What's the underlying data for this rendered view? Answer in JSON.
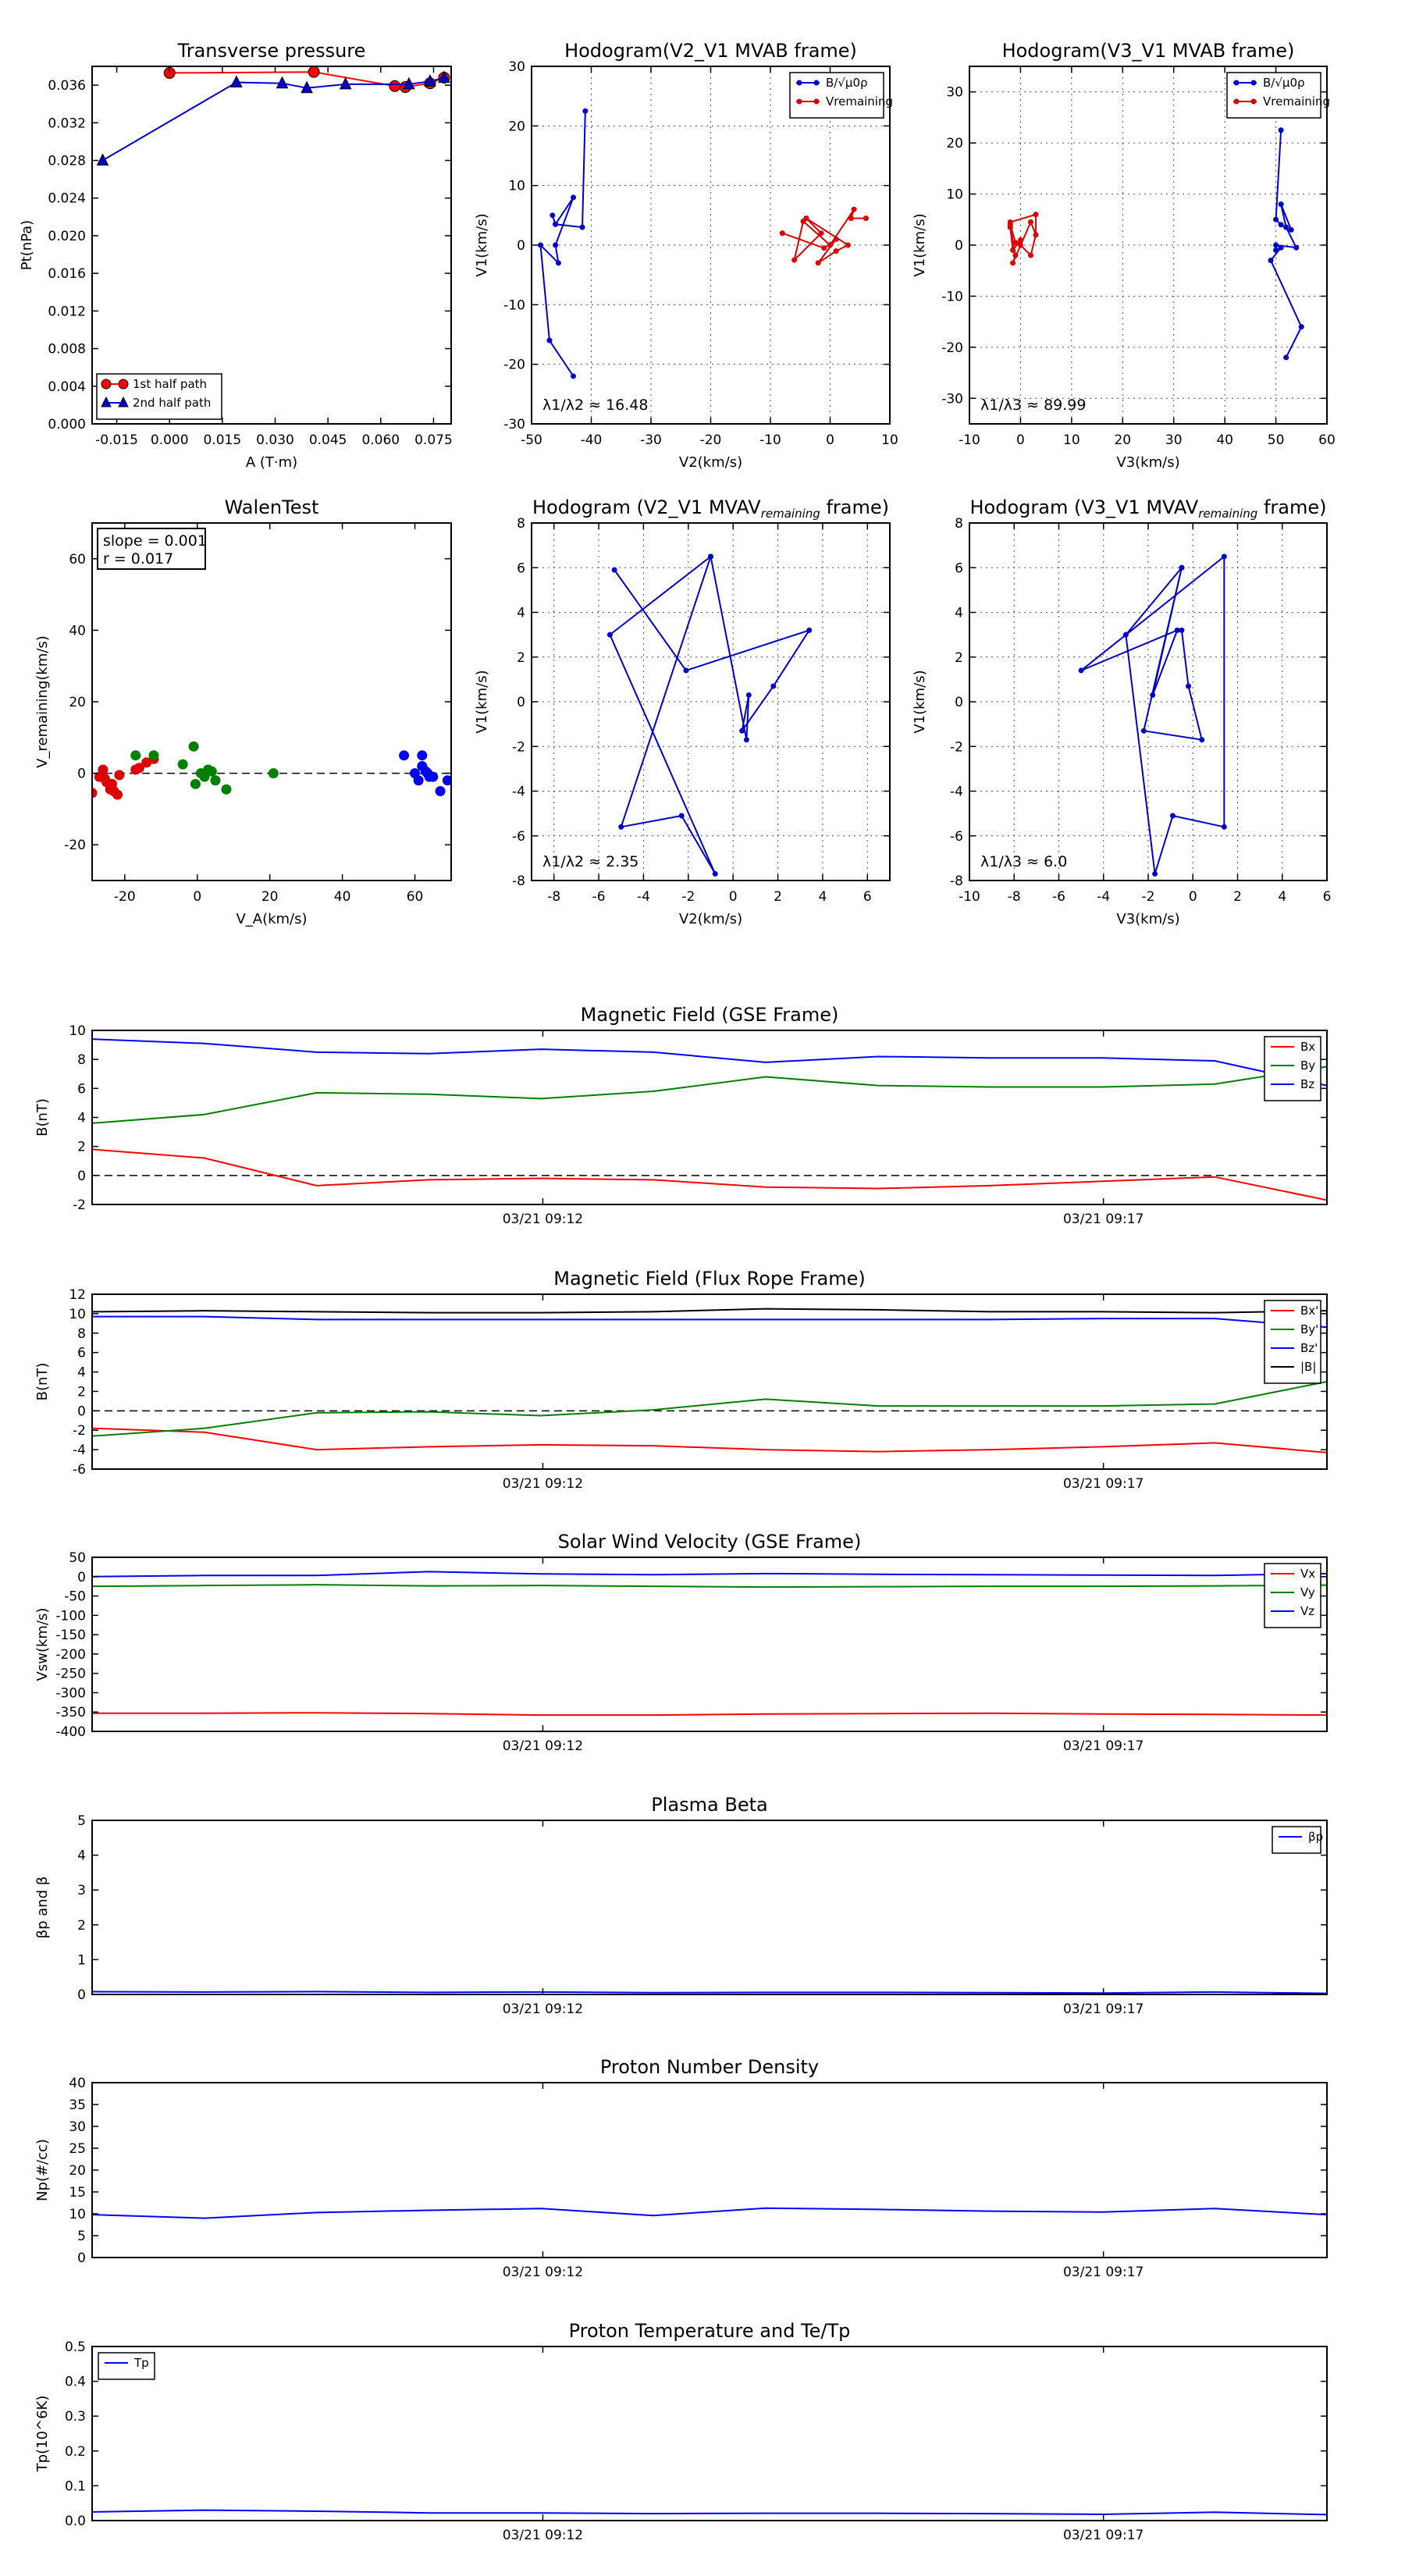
{
  "chart_data": [
    {
      "id": "tp",
      "type": "line",
      "title": "Transverse pressure",
      "xlabel": "A (T·m)",
      "ylabel": "Pt(nPa)",
      "xlim": [
        -0.022,
        0.08
      ],
      "ylim": [
        0.0,
        0.038
      ],
      "xticks": [
        -0.015,
        0.0,
        0.015,
        0.03,
        0.045,
        0.06,
        0.075
      ],
      "xtick_labels": [
        "-0.015",
        "0.000",
        "0.015",
        "0.030",
        "0.045",
        "0.060",
        "0.075"
      ],
      "yticks": [
        0,
        0.004,
        0.008,
        0.012,
        0.016,
        0.02,
        0.024,
        0.028,
        0.032,
        0.036
      ],
      "ytick_labels": [
        "0.000",
        "0.004",
        "0.008",
        "0.012",
        "0.016",
        "0.020",
        "0.024",
        "0.028",
        "0.032",
        "0.036"
      ],
      "grid": false,
      "legend": "lower-left",
      "series": [
        {
          "name": "1st half path",
          "color": "#ff0000",
          "marker": "circle",
          "x": [
            0.078,
            0.074,
            0.067,
            0.064,
            0.041,
            0.0
          ],
          "y": [
            0.0368,
            0.0362,
            0.0358,
            0.0359,
            0.0374,
            0.0373
          ]
        },
        {
          "name": "2nd half path",
          "color": "#0000cc",
          "marker": "triangle",
          "x": [
            -0.019,
            0.019,
            0.032,
            0.039,
            0.05,
            0.068,
            0.074,
            0.078
          ],
          "y": [
            0.028,
            0.0363,
            0.0362,
            0.0357,
            0.0361,
            0.0361,
            0.0364,
            0.0368
          ]
        }
      ]
    },
    {
      "id": "h1",
      "type": "line",
      "title": "Hodogram(V2_V1 MVAB frame)",
      "xlabel": "V2(km/s)",
      "ylabel": "V1(km/s)",
      "xlim": [
        -50,
        10
      ],
      "ylim": [
        -30,
        30
      ],
      "xticks": [
        -50,
        -40,
        -30,
        -20,
        -10,
        0,
        10
      ],
      "yticks": [
        -30,
        -20,
        -10,
        0,
        10,
        20,
        30
      ],
      "grid": true,
      "legend": "top-right",
      "annotation": "λ1/λ2 ≈ 16.48",
      "series": [
        {
          "name": "B/√μ0ρ",
          "color": "#0000cc",
          "x": [
            -41,
            -41.5,
            -46,
            -46.5,
            -46,
            -43,
            -46,
            -45.5,
            -48.5,
            -47,
            -43
          ],
          "y": [
            22.5,
            3,
            3.5,
            5,
            3.5,
            8,
            0,
            -3,
            0,
            -16,
            -22
          ]
        },
        {
          "name": "Vremaining",
          "color": "#dd0000",
          "x": [
            6,
            3.5,
            4,
            0,
            -4.5,
            -6,
            -1.5,
            -4,
            3,
            1,
            -2,
            1,
            -1,
            -8
          ],
          "y": [
            4.5,
            4.5,
            6,
            0,
            4,
            -2.5,
            2,
            4.5,
            0,
            -1,
            -3,
            1,
            -0.5,
            2
          ]
        }
      ]
    },
    {
      "id": "h2",
      "type": "line",
      "title": "Hodogram(V3_V1 MVAB frame)",
      "xlabel": "V3(km/s)",
      "ylabel": "V1(km/s)",
      "xlim": [
        -10,
        60
      ],
      "ylim": [
        -35,
        35
      ],
      "xticks": [
        -10,
        0,
        10,
        20,
        30,
        40,
        50,
        60
      ],
      "yticks": [
        -30,
        -20,
        -10,
        0,
        10,
        20,
        30
      ],
      "grid": true,
      "legend": "top-right",
      "annotation": "λ1/λ3 ≈ 89.99",
      "series": [
        {
          "name": "B/√μ0ρ",
          "color": "#0000cc",
          "x": [
            51,
            50,
            51,
            53,
            51,
            52,
            54,
            50,
            50,
            51,
            49,
            55,
            52
          ],
          "y": [
            22.5,
            5,
            4,
            3,
            8,
            3.5,
            -0.5,
            0,
            -1,
            -0.5,
            -3,
            -16,
            -22
          ]
        },
        {
          "name": "Vremaining",
          "color": "#dd0000",
          "x": [
            3,
            3,
            -2,
            -2,
            -1,
            0,
            2,
            3,
            2,
            -1.5,
            -1,
            -2,
            -1.5,
            0
          ],
          "y": [
            2,
            6,
            4.5,
            4,
            0.5,
            0,
            -2,
            2,
            4.5,
            -3.5,
            -2,
            3.5,
            -1,
            1
          ]
        }
      ]
    },
    {
      "id": "walen",
      "type": "scatter",
      "title": "WalenTest",
      "xlabel": "V_A(km/s)",
      "ylabel": "V_remaining(km/s)",
      "xlim": [
        -29,
        70
      ],
      "ylim": [
        -30,
        70
      ],
      "xticks": [
        -20,
        0,
        20,
        40,
        60
      ],
      "yticks": [
        -20,
        0,
        20,
        40,
        60
      ],
      "grid": false,
      "annotation_lines": [
        "slope = 0.001",
        "r = 0.017"
      ],
      "fit_line": {
        "x": [
          -29,
          70
        ],
        "y": [
          0,
          0
        ]
      },
      "series": [
        {
          "name": "",
          "color": "#dd0000",
          "x": [
            -29,
            -27,
            -26,
            -25.5,
            -25,
            -24,
            -23.5,
            -23,
            -22,
            -21.5,
            -17,
            -16,
            -14,
            -12
          ],
          "y": [
            -5.5,
            -1,
            1,
            -1.5,
            -2.5,
            -4.5,
            -3,
            -5,
            -6,
            -0.5,
            1,
            1.5,
            3,
            4
          ]
        },
        {
          "name": "",
          "color": "#008000",
          "x": [
            -17,
            -12,
            -4,
            -1,
            -0.5,
            1,
            2,
            3,
            4,
            5,
            8,
            21
          ],
          "y": [
            5,
            5,
            2.5,
            7.5,
            -3,
            0,
            -1,
            1,
            0.5,
            -2,
            -4.5,
            0
          ]
        },
        {
          "name": "",
          "color": "#0000ee",
          "x": [
            57,
            60,
            61,
            62,
            62,
            63,
            63.5,
            64,
            65,
            67,
            69
          ],
          "y": [
            5,
            0,
            -2,
            2,
            5,
            0.5,
            0,
            -1,
            -1,
            -5,
            -2
          ]
        }
      ]
    },
    {
      "id": "h3",
      "type": "line",
      "title": "Hodogram (V2_V1 MVAV",
      "title_sub": "remaining",
      "title_end": " frame)",
      "xlabel": "V2(km/s)",
      "ylabel": "V1(km/s)",
      "xlim": [
        -9,
        7
      ],
      "ylim": [
        -8,
        8
      ],
      "xticks": [
        -8,
        -6,
        -4,
        -2,
        0,
        2,
        4,
        6
      ],
      "yticks": [
        -8,
        -6,
        -4,
        -2,
        0,
        2,
        4,
        6,
        8
      ],
      "grid": true,
      "annotation": "λ1/λ2 ≈ 2.35",
      "series": [
        {
          "name": "",
          "color": "#0000cc",
          "x": [
            -5.3,
            -2.1,
            3.4,
            1.8,
            0.4,
            0.7,
            0.6,
            -1.0,
            -5.0,
            -2.3,
            -0.8,
            -5.5,
            -1.0
          ],
          "y": [
            5.9,
            1.4,
            3.2,
            0.7,
            -1.3,
            0.3,
            -1.7,
            6.5,
            -5.6,
            -5.1,
            -7.7,
            3.0,
            6.5
          ]
        }
      ]
    },
    {
      "id": "h4",
      "type": "line",
      "title": "Hodogram (V3_V1 MVAV",
      "title_sub": "remaining",
      "title_end": " frame)",
      "xlabel": "V3(km/s)",
      "ylabel": "V1(km/s)",
      "xlim": [
        -10,
        6
      ],
      "ylim": [
        -8,
        8
      ],
      "xticks": [
        -10,
        -8,
        -6,
        -4,
        -2,
        0,
        2,
        4,
        6
      ],
      "yticks": [
        -8,
        -6,
        -4,
        -2,
        0,
        2,
        4,
        6,
        8
      ],
      "grid": true,
      "annotation": "λ1/λ3 ≈ 6.0",
      "series": [
        {
          "name": "",
          "color": "#0000cc",
          "x": [
            -0.5,
            -1.8,
            -0.7,
            -5.0,
            1.4,
            1.4,
            -0.9,
            -1.7,
            -3.0,
            -0.5,
            -2.2,
            0.4,
            -0.2,
            -0.5
          ],
          "y": [
            6.0,
            0.3,
            3.2,
            1.4,
            6.5,
            -5.6,
            -5.1,
            -7.7,
            3.0,
            6.0,
            -1.3,
            -1.7,
            0.7,
            3.2
          ]
        }
      ]
    },
    {
      "id": "mag_gse",
      "type": "line",
      "title": "Magnetic Field (GSE Frame)",
      "ylabel": "B(nT)",
      "ylim": [
        -2,
        10
      ],
      "yticks": [
        -2,
        0,
        2,
        4,
        6,
        8,
        10
      ],
      "zero_line": true,
      "legend": "top-right",
      "x": [
        0,
        1,
        2,
        3,
        4,
        5,
        6,
        7,
        8,
        9,
        10,
        11
      ],
      "series": [
        {
          "name": "Bx",
          "color": "#ff0000",
          "values": [
            1.8,
            1.2,
            -0.7,
            -0.3,
            -0.2,
            -0.3,
            -0.8,
            -0.9,
            -0.7,
            -0.4,
            -0.1,
            -1.7
          ]
        },
        {
          "name": "By",
          "color": "#008000",
          "values": [
            3.6,
            4.2,
            5.7,
            5.6,
            5.3,
            5.8,
            6.8,
            6.2,
            6.1,
            6.1,
            6.3,
            7.5
          ]
        },
        {
          "name": "Bz",
          "color": "#0000ff",
          "values": [
            9.4,
            9.1,
            8.5,
            8.4,
            8.7,
            8.5,
            7.8,
            8.2,
            8.1,
            8.1,
            7.9,
            6.2
          ]
        }
      ],
      "xtick_labels": [
        "03/21 09:12",
        "03/21 09:17"
      ]
    },
    {
      "id": "mag_fr",
      "type": "line",
      "title": "Magnetic Field (Flux Rope Frame)",
      "ylabel": "B(nT)",
      "ylim": [
        -6,
        12
      ],
      "yticks": [
        -6,
        -4,
        -2,
        0,
        2,
        4,
        6,
        8,
        10,
        12
      ],
      "zero_line": true,
      "legend": "top-right",
      "x": [
        0,
        1,
        2,
        3,
        4,
        5,
        6,
        7,
        8,
        9,
        10,
        11
      ],
      "series": [
        {
          "name": "Bx'",
          "color": "#ff0000",
          "values": [
            -1.8,
            -2.2,
            -4.0,
            -3.7,
            -3.5,
            -3.6,
            -4.0,
            -4.2,
            -4.0,
            -3.7,
            -3.3,
            -4.3
          ]
        },
        {
          "name": "By'",
          "color": "#008000",
          "values": [
            -2.6,
            -1.8,
            -0.2,
            -0.1,
            -0.5,
            0.1,
            1.2,
            0.5,
            0.5,
            0.5,
            0.7,
            3.0
          ]
        },
        {
          "name": "Bz'",
          "color": "#0000ff",
          "values": [
            9.7,
            9.7,
            9.4,
            9.4,
            9.4,
            9.4,
            9.4,
            9.4,
            9.4,
            9.5,
            9.5,
            8.6
          ]
        },
        {
          "name": "|B|",
          "color": "#000000",
          "values": [
            10.2,
            10.3,
            10.2,
            10.1,
            10.1,
            10.2,
            10.5,
            10.4,
            10.2,
            10.2,
            10.1,
            10.3
          ]
        }
      ],
      "xtick_labels": [
        "03/21 09:12",
        "03/21 09:17"
      ]
    },
    {
      "id": "vel",
      "type": "line",
      "title": "Solar Wind Velocity (GSE Frame)",
      "ylabel": "Vsw(km/s)",
      "ylim": [
        -400,
        50
      ],
      "yticks": [
        -400,
        -350,
        -300,
        -250,
        -200,
        -150,
        -100,
        -50,
        0,
        50
      ],
      "legend": "top-right",
      "x": [
        0,
        1,
        2,
        3,
        4,
        5,
        6,
        7,
        8,
        9,
        10,
        11
      ],
      "series": [
        {
          "name": "Vx",
          "color": "#ff0000",
          "values": [
            -353,
            -353,
            -352,
            -354,
            -358,
            -358,
            -355,
            -354,
            -353,
            -355,
            -356,
            -358
          ]
        },
        {
          "name": "Vy",
          "color": "#008000",
          "values": [
            -25,
            -23,
            -21,
            -24,
            -23,
            -25,
            -27,
            -26,
            -25,
            -25,
            -24,
            -22
          ]
        },
        {
          "name": "Vz",
          "color": "#0000ff",
          "values": [
            0,
            3,
            3,
            13,
            7,
            5,
            8,
            6,
            5,
            4,
            3,
            8
          ]
        }
      ],
      "xtick_labels": [
        "03/21 09:12",
        "03/21 09:17"
      ]
    },
    {
      "id": "beta",
      "type": "line",
      "title": "Plasma Beta",
      "ylabel": "βp and β",
      "ylim": [
        0,
        5
      ],
      "yticks": [
        0,
        1,
        2,
        3,
        4,
        5
      ],
      "legend": "top-right",
      "x": [
        0,
        1,
        2,
        3,
        4,
        5,
        6,
        7,
        8,
        9,
        10,
        11
      ],
      "series": [
        {
          "name": "βp",
          "color": "#0000ff",
          "values": [
            0.08,
            0.07,
            0.08,
            0.06,
            0.07,
            0.05,
            0.06,
            0.06,
            0.05,
            0.04,
            0.07,
            0.03
          ]
        }
      ],
      "xtick_labels": [
        "03/21 09:12",
        "03/21 09:17"
      ]
    },
    {
      "id": "density",
      "type": "line",
      "title": "Proton Number Density",
      "ylabel": "Np(#/cc)",
      "ylim": [
        0,
        40
      ],
      "yticks": [
        0,
        5,
        10,
        15,
        20,
        25,
        30,
        35,
        40
      ],
      "x": [
        0,
        1,
        2,
        3,
        4,
        5,
        6,
        7,
        8,
        9,
        10,
        11
      ],
      "series": [
        {
          "name": "",
          "color": "#0000ff",
          "values": [
            9.8,
            9.0,
            10.3,
            10.8,
            11.2,
            9.6,
            11.3,
            11.0,
            10.6,
            10.4,
            11.2,
            9.8
          ]
        }
      ],
      "xtick_labels": [
        "03/21 09:12",
        "03/21 09:17"
      ]
    },
    {
      "id": "temp",
      "type": "line",
      "title": "Proton Temperature and Te/Tp",
      "ylabel": "Tp(10^6K)",
      "ylim": [
        0,
        0.5
      ],
      "yticks": [
        0,
        0.1,
        0.2,
        0.3,
        0.4,
        0.5
      ],
      "ytick_labels": [
        "0.0",
        "0.1",
        "0.2",
        "0.3",
        "0.4",
        "0.5"
      ],
      "legend": "top-left",
      "x": [
        0,
        1,
        2,
        3,
        4,
        5,
        6,
        7,
        8,
        9,
        10,
        11
      ],
      "series": [
        {
          "name": "Tp",
          "color": "#0000ff",
          "values": [
            0.025,
            0.03,
            0.027,
            0.022,
            0.022,
            0.02,
            0.021,
            0.021,
            0.02,
            0.018,
            0.024,
            0.017
          ]
        }
      ],
      "xtick_labels": [
        "03/21 09:12",
        "03/21 09:17"
      ]
    }
  ]
}
